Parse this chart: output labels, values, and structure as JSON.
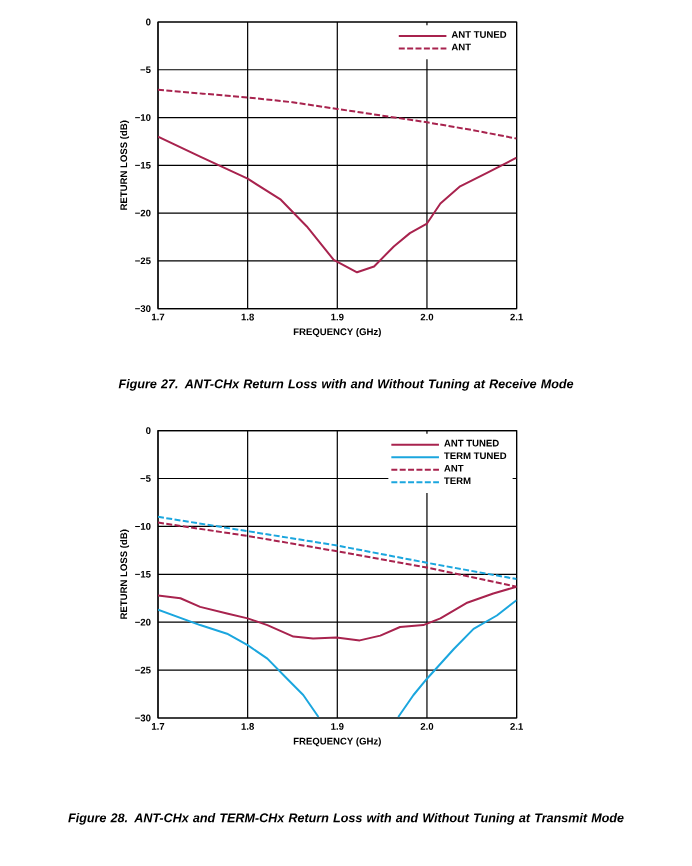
{
  "chart_data": [
    {
      "type": "line",
      "xlabel": "FREQUENCY (GHz)",
      "ylabel": "RETURN LOSS (dB)",
      "annotations": [
        "Figure 27. ANT-CHx Return Loss with and Without Tuning at Receive Mode"
      ],
      "xlim": [
        1.7,
        2.1
      ],
      "ylim": [
        -30,
        0
      ],
      "xticks": [
        {
          "value": 1.7,
          "label": "1.7"
        },
        {
          "value": 1.8,
          "label": "1.8"
        },
        {
          "value": 1.9,
          "label": "1.9"
        },
        {
          "value": 2.0,
          "label": "2.0"
        },
        {
          "value": 2.1,
          "label": "2.1"
        }
      ],
      "yticks": [
        {
          "value": -30,
          "label": "−30"
        },
        {
          "value": -25,
          "label": "−25"
        },
        {
          "value": -20,
          "label": "−20"
        },
        {
          "value": -15,
          "label": "−15"
        },
        {
          "value": -10,
          "label": "−10"
        },
        {
          "value": -5,
          "label": "−5"
        },
        0
      ],
      "grid": true,
      "legend": "top right",
      "series": [
        {
          "name": "ANT TUNED",
          "color": "#a8234e",
          "line_style": "solid",
          "x": [
            1.7,
            1.747,
            1.8,
            1.837,
            1.866,
            1.896,
            1.922,
            1.941,
            1.963,
            1.981,
            2.0,
            2.015,
            2.037,
            2.067,
            2.1
          ],
          "values": [
            -12.0,
            -14.1,
            -16.4,
            -18.6,
            -21.4,
            -24.9,
            -26.2,
            -25.6,
            -23.5,
            -22.1,
            -21.1,
            -19.0,
            -17.2,
            -15.8,
            -14.2
          ]
        },
        {
          "name": "ANT",
          "color": "#a8234e",
          "line_style": "dashed",
          "x": [
            1.7,
            1.75,
            1.8,
            1.85,
            1.9,
            1.95,
            2.0,
            2.05,
            2.1
          ],
          "values": [
            -7.1,
            -7.5,
            -7.9,
            -8.4,
            -9.1,
            -9.8,
            -10.5,
            -11.3,
            -12.2
          ]
        }
      ]
    },
    {
      "type": "line",
      "xlabel": "FREQUENCY (GHz)",
      "ylabel": "RETURN LOSS (dB)",
      "annotations": [
        "Figure 28. ANT-CHx and TERM-CHx Return Loss with and Without Tuning at Transmit Mode"
      ],
      "xlim": [
        1.7,
        2.1
      ],
      "ylim": [
        -30,
        0
      ],
      "xticks": [
        {
          "value": 1.7,
          "label": "1.7"
        },
        {
          "value": 1.8,
          "label": "1.8"
        },
        {
          "value": 1.9,
          "label": "1.9"
        },
        {
          "value": 2.0,
          "label": "2.0"
        },
        {
          "value": 2.1,
          "label": "2.1"
        }
      ],
      "yticks": [
        {
          "value": -30,
          "label": "−30"
        },
        {
          "value": -25,
          "label": "−25"
        },
        {
          "value": -20,
          "label": "−20"
        },
        {
          "value": -15,
          "label": "−15"
        },
        {
          "value": -10,
          "label": "−10"
        },
        {
          "value": -5,
          "label": "−5"
        },
        0
      ],
      "grid": true,
      "legend": "top right",
      "series": [
        {
          "name": "ANT TUNED",
          "color": "#a8234e",
          "line_style": "solid",
          "x": [
            1.7,
            1.725,
            1.747,
            1.777,
            1.8,
            1.822,
            1.851,
            1.873,
            1.899,
            1.925,
            1.948,
            1.97,
            1.996,
            2.015,
            2.044,
            2.074,
            2.1
          ],
          "values": [
            -17.2,
            -17.5,
            -18.4,
            -19.1,
            -19.6,
            -20.3,
            -21.5,
            -21.7,
            -21.6,
            -21.9,
            -21.4,
            -20.5,
            -20.3,
            -19.6,
            -18.0,
            -17.0,
            -16.3
          ]
        },
        {
          "name": "TERM TUNED",
          "color": "#1ba6de",
          "line_style": "solid",
          "x": [
            1.7,
            1.747,
            1.777,
            1.8,
            1.822,
            1.844,
            1.862,
            1.879,
            1.92,
            1.968,
            1.985,
            2.0,
            2.03,
            2.052,
            2.078,
            2.1
          ],
          "values": [
            -18.7,
            -20.3,
            -21.2,
            -22.4,
            -23.8,
            -25.9,
            -27.6,
            -29.9,
            null,
            -29.9,
            -27.6,
            -25.9,
            -22.8,
            -20.7,
            -19.3,
            -17.7
          ]
        },
        {
          "name": "ANT",
          "color": "#a8234e",
          "line_style": "dashed",
          "x": [
            1.7,
            1.8,
            1.9,
            2.0,
            2.1
          ],
          "values": [
            -9.6,
            -11.0,
            -12.6,
            -14.3,
            -16.3
          ]
        },
        {
          "name": "TERM",
          "color": "#1ba6de",
          "line_style": "dashed",
          "x": [
            1.7,
            1.8,
            1.9,
            2.0,
            2.1
          ],
          "values": [
            -9.0,
            -10.5,
            -12.0,
            -13.8,
            -15.5
          ]
        }
      ]
    }
  ]
}
